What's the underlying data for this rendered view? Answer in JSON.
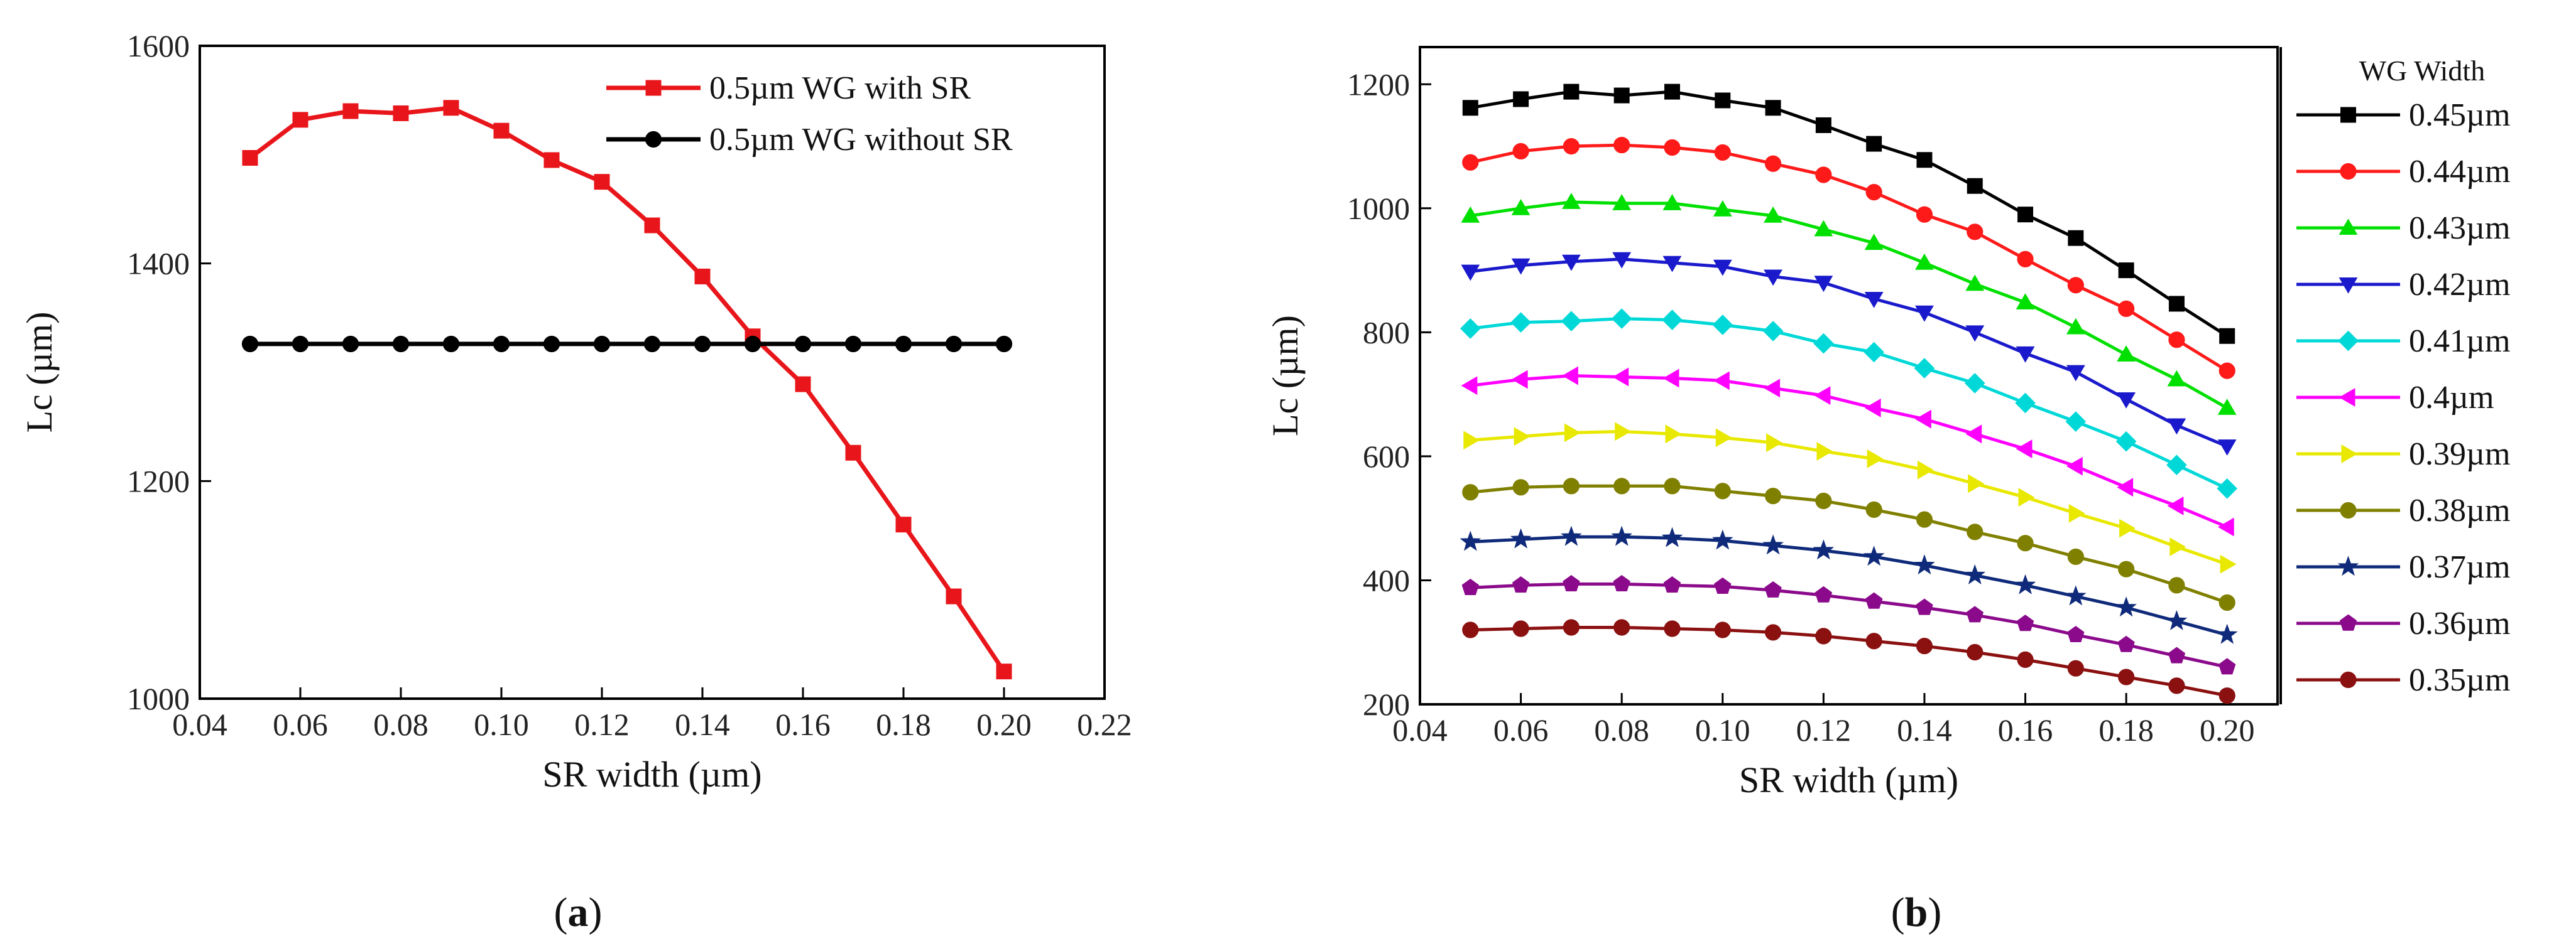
{
  "chart_data": [
    {
      "type": "line",
      "panel": "(a)",
      "panel_letter": "a",
      "title": "",
      "xlabel": "SR width (µm)",
      "ylabel": "Lc (µm)",
      "xlim": [
        0.04,
        0.22
      ],
      "ylim": [
        1000,
        1600
      ],
      "xticks": [
        0.04,
        0.06,
        0.08,
        0.1,
        0.12,
        0.14,
        0.16,
        0.18,
        0.2,
        0.22
      ],
      "xtick_labels": [
        "0.04",
        "0.06",
        "0.08",
        "0.10",
        "0.12",
        "0.14",
        "0.16",
        "0.18",
        "0.20",
        "0.22"
      ],
      "yticks": [
        1000,
        1200,
        1400,
        1600
      ],
      "ytick_labels": [
        "1000",
        "1200",
        "1400",
        "1600"
      ],
      "x": [
        0.05,
        0.06,
        0.07,
        0.08,
        0.09,
        0.1,
        0.11,
        0.12,
        0.13,
        0.14,
        0.15,
        0.16,
        0.17,
        0.18,
        0.19,
        0.2
      ],
      "series": [
        {
          "name": "0.5µm WG with SR",
          "color": "#e8161b",
          "marker": "square",
          "values": [
            1497,
            1532,
            1540,
            1538,
            1543,
            1522,
            1495,
            1475,
            1435,
            1388,
            1333,
            1289,
            1226,
            1160,
            1094,
            1025
          ]
        },
        {
          "name": "0.5µm WG without SR",
          "color": "#000000",
          "marker": "circle",
          "values": [
            1326,
            1326,
            1326,
            1326,
            1326,
            1326,
            1326,
            1326,
            1326,
            1326,
            1326,
            1326,
            1326,
            1326,
            1326,
            1326
          ]
        }
      ],
      "legend_position": "top-right"
    },
    {
      "type": "line",
      "panel": "(b)",
      "panel_letter": "b",
      "title": "",
      "xlabel": "SR width (µm)",
      "ylabel": "Lc (µm)",
      "xlim": [
        0.04,
        0.21
      ],
      "ylim": [
        200,
        1260
      ],
      "xticks": [
        0.04,
        0.06,
        0.08,
        0.1,
        0.12,
        0.14,
        0.16,
        0.18,
        0.2
      ],
      "xtick_labels": [
        "0.04",
        "0.06",
        "0.08",
        "0.10",
        "0.12",
        "0.14",
        "0.16",
        "0.18",
        "0.20"
      ],
      "yticks": [
        200,
        400,
        600,
        800,
        1000,
        1200
      ],
      "ytick_labels": [
        "200",
        "400",
        "600",
        "800",
        "1000",
        "1200"
      ],
      "legend_title": "WG Width",
      "legend_position": "right",
      "x": [
        0.05,
        0.06,
        0.07,
        0.08,
        0.09,
        0.1,
        0.11,
        0.12,
        0.13,
        0.14,
        0.15,
        0.16,
        0.17,
        0.18,
        0.19,
        0.2
      ],
      "series": [
        {
          "name": "0.45µm",
          "color": "#000000",
          "marker": "square",
          "values": [
            1162,
            1176,
            1188,
            1182,
            1188,
            1174,
            1162,
            1134,
            1104,
            1078,
            1036,
            990,
            952,
            900,
            846,
            794
          ]
        },
        {
          "name": "0.44µm",
          "color": "#ff1a1a",
          "marker": "circle",
          "values": [
            1074,
            1092,
            1100,
            1102,
            1098,
            1090,
            1072,
            1054,
            1026,
            990,
            962,
            918,
            876,
            838,
            788,
            738
          ]
        },
        {
          "name": "0.43µm",
          "color": "#00e000",
          "marker": "triangle-up",
          "values": [
            988,
            1000,
            1010,
            1008,
            1008,
            998,
            988,
            966,
            944,
            912,
            878,
            848,
            808,
            764,
            724,
            678
          ]
        },
        {
          "name": "0.42µm",
          "color": "#1a1acc",
          "marker": "triangle-down",
          "values": [
            898,
            908,
            914,
            918,
            912,
            906,
            890,
            880,
            854,
            832,
            800,
            766,
            736,
            692,
            650,
            616
          ]
        },
        {
          "name": "0.41µm",
          "color": "#00d8d8",
          "marker": "diamond",
          "values": [
            806,
            816,
            818,
            822,
            820,
            812,
            802,
            782,
            768,
            742,
            718,
            686,
            656,
            624,
            586,
            548
          ]
        },
        {
          "name": "0.4µm",
          "color": "#ff00ff",
          "marker": "triangle-left",
          "values": [
            714,
            724,
            730,
            728,
            726,
            722,
            710,
            698,
            678,
            660,
            636,
            612,
            584,
            550,
            520,
            486
          ]
        },
        {
          "name": "0.39µm",
          "color": "#e8e800",
          "marker": "triangle-right",
          "values": [
            626,
            632,
            638,
            640,
            636,
            630,
            622,
            608,
            596,
            578,
            556,
            534,
            508,
            484,
            454,
            426
          ]
        },
        {
          "name": "0.38µm",
          "color": "#808000",
          "marker": "circle",
          "values": [
            542,
            550,
            552,
            552,
            552,
            544,
            536,
            528,
            514,
            498,
            478,
            460,
            438,
            418,
            392,
            364
          ]
        },
        {
          "name": "0.37µm",
          "color": "#0f2a7a",
          "marker": "star",
          "values": [
            462,
            466,
            470,
            470,
            468,
            464,
            456,
            448,
            438,
            424,
            408,
            392,
            374,
            356,
            334,
            312
          ]
        },
        {
          "name": "0.36µm",
          "color": "#8b0a8b",
          "marker": "pentagon",
          "values": [
            388,
            392,
            394,
            394,
            392,
            390,
            384,
            376,
            366,
            356,
            344,
            330,
            312,
            296,
            278,
            260
          ]
        },
        {
          "name": "0.35µm",
          "color": "#8b1010",
          "marker": "circle",
          "values": [
            320,
            322,
            324,
            324,
            322,
            320,
            316,
            310,
            302,
            294,
            284,
            272,
            258,
            244,
            230,
            214
          ]
        }
      ]
    }
  ]
}
